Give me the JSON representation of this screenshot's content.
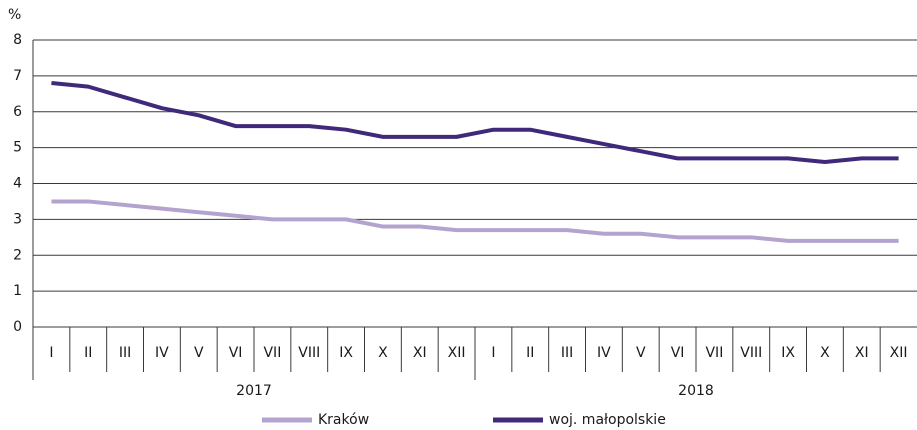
{
  "chart_data": {
    "type": "line",
    "y_unit_label": "%",
    "categories": [
      "I",
      "II",
      "III",
      "IV",
      "V",
      "VI",
      "VII",
      "VIII",
      "IX",
      "X",
      "XI",
      "XII",
      "I",
      "II",
      "III",
      "IV",
      "V",
      "VI",
      "VII",
      "VIII",
      "IX",
      "X",
      "XI",
      "XII"
    ],
    "category_groups": [
      "2017",
      "2018"
    ],
    "series": [
      {
        "name": "Kraków",
        "color": "#b4a3cf",
        "values": [
          3.5,
          3.5,
          3.4,
          3.3,
          3.2,
          3.1,
          3.0,
          3.0,
          3.0,
          2.8,
          2.8,
          2.7,
          2.7,
          2.7,
          2.7,
          2.6,
          2.6,
          2.5,
          2.5,
          2.5,
          2.4,
          2.4,
          2.4,
          2.4
        ]
      },
      {
        "name": "woj. małopolskie",
        "color": "#40287a",
        "values": [
          6.8,
          6.7,
          6.4,
          6.1,
          5.9,
          5.6,
          5.6,
          5.6,
          5.5,
          5.3,
          5.3,
          5.3,
          5.5,
          5.5,
          5.3,
          5.1,
          4.9,
          4.7,
          4.7,
          4.7,
          4.7,
          4.6,
          4.7,
          4.7
        ]
      }
    ],
    "ylim": [
      0,
      8
    ],
    "yticks": [
      0,
      1,
      2,
      3,
      4,
      5,
      6,
      7,
      8
    ],
    "grid": true,
    "legend": "bottom"
  }
}
